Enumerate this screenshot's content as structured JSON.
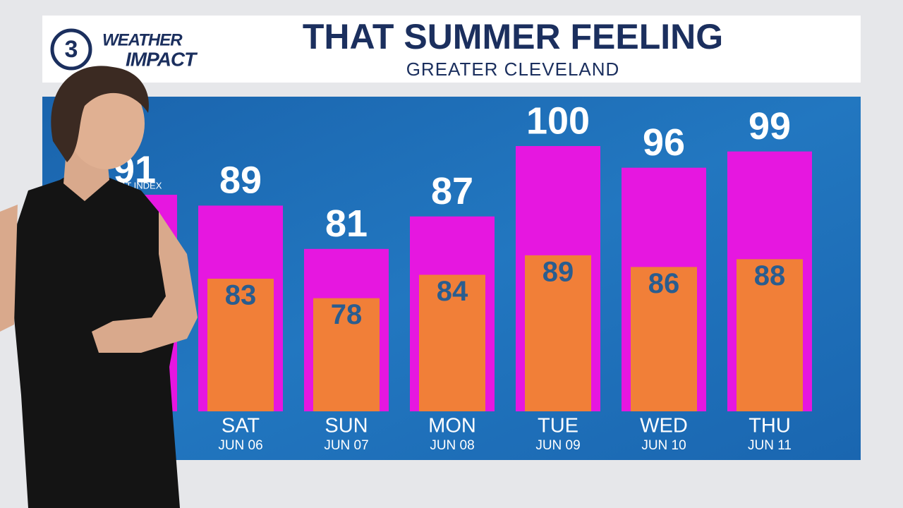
{
  "logo": {
    "channel": "3",
    "line1": "WEATHER",
    "line2": "IMPACT"
  },
  "chart_data": {
    "type": "bar",
    "title": "THAT SUMMER FEELING",
    "subtitle": "GREATER CLEVELAND",
    "annotation": "HEAT INDEX",
    "categories": [
      null,
      "SAT",
      "SUN",
      "MON",
      "TUE",
      "WED",
      "THU"
    ],
    "dates": [
      null,
      "JUN 06",
      "JUN 07",
      "JUN 08",
      "JUN 09",
      "JUN 10",
      "JUN 11"
    ],
    "series": [
      {
        "name": "HEAT INDEX",
        "color": "#e617e0",
        "values": [
          91,
          89,
          81,
          87,
          100,
          96,
          99
        ]
      },
      {
        "color": "#f17f38",
        "axis": "y2",
        "values": [
          null,
          83,
          78,
          84,
          89,
          86,
          88
        ]
      }
    ],
    "ylim": [
      51,
      100
    ],
    "y2lim": [
      49,
      117
    ]
  }
}
